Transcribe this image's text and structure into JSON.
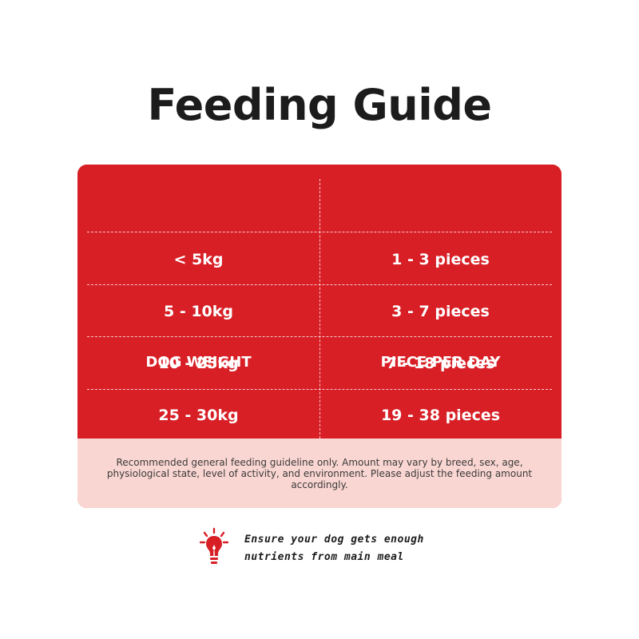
{
  "title": "Feeding Guide",
  "table": {
    "headers": [
      "DOG WEIGHT",
      "PIECE PER DAY"
    ],
    "rows": [
      [
        "< 5kg",
        "1 - 3 pieces"
      ],
      [
        "5 - 10kg",
        "3 - 7 pieces"
      ],
      [
        "10 - 25kg",
        "7 - 18 pieces"
      ],
      [
        "25 - 30kg",
        "19 - 38 pieces"
      ]
    ]
  },
  "note": "Recommended general feeding guideline only. Amount may vary by breed, sex, age, physiological state, level of activity, and environment. Please adjust the feeding amount accordingly.",
  "tip": {
    "icon": "lightbulb-icon",
    "line1": "Ensure your dog gets enough",
    "line2": "nutrients from main meal"
  },
  "colors": {
    "card": "#d81f26",
    "note_background": "#fad6d2",
    "title": "#1c1c1c",
    "icon": "#d81f26"
  }
}
